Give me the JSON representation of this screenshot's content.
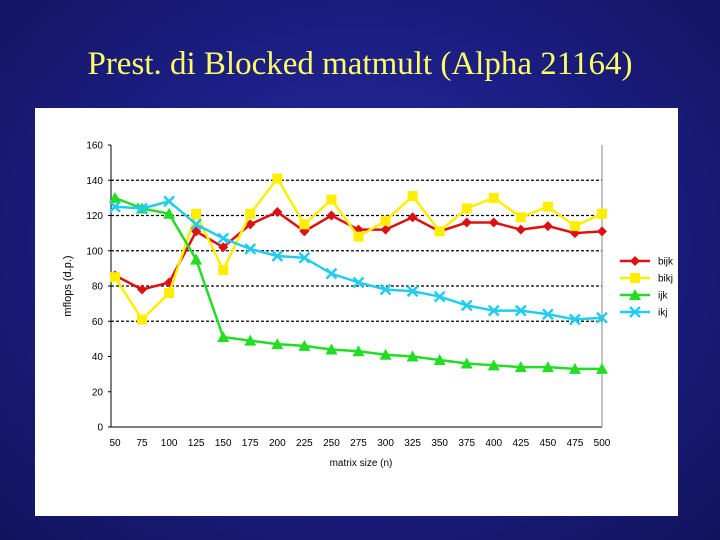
{
  "slide": {
    "title": "Prest. di Blocked matmult (Alpha 21164)"
  },
  "chart_data": {
    "type": "line",
    "title": "",
    "xlabel": "matrix size (n)",
    "ylabel": "mflops (d.p.)",
    "x": [
      50,
      75,
      100,
      125,
      150,
      175,
      200,
      225,
      250,
      275,
      300,
      325,
      350,
      375,
      400,
      425,
      450,
      475,
      500
    ],
    "ylim": [
      0,
      160
    ],
    "yticks": [
      0,
      20,
      40,
      60,
      80,
      100,
      120,
      140,
      160
    ],
    "grid": "dashed horizontal lines at 60, 80, 100, 120, 140",
    "legend": "right",
    "series": [
      {
        "name": "bijk",
        "color": "#dd1111",
        "marker": "diamond",
        "values": [
          86,
          78,
          82,
          111,
          102,
          115,
          122,
          111,
          120,
          112,
          112,
          119,
          111,
          116,
          116,
          112,
          114,
          110,
          111
        ]
      },
      {
        "name": "bikj",
        "color": "#ffee00",
        "marker": "square",
        "values": [
          85,
          61,
          76,
          121,
          89,
          121,
          141,
          115,
          129,
          108,
          117,
          131,
          111,
          124,
          130,
          119,
          125,
          114,
          121
        ]
      },
      {
        "name": "ijk",
        "color": "#22dd22",
        "marker": "triangle",
        "values": [
          130,
          124,
          121,
          95,
          51,
          49,
          47,
          46,
          44,
          43,
          41,
          40,
          38,
          36,
          35,
          34,
          34,
          33,
          33
        ]
      },
      {
        "name": "ikj",
        "color": "#22ccee",
        "marker": "x",
        "values": [
          125,
          124,
          128,
          115,
          107,
          101,
          97,
          96,
          87,
          82,
          78,
          77,
          74,
          69,
          66,
          66,
          64,
          61,
          62
        ]
      }
    ]
  }
}
